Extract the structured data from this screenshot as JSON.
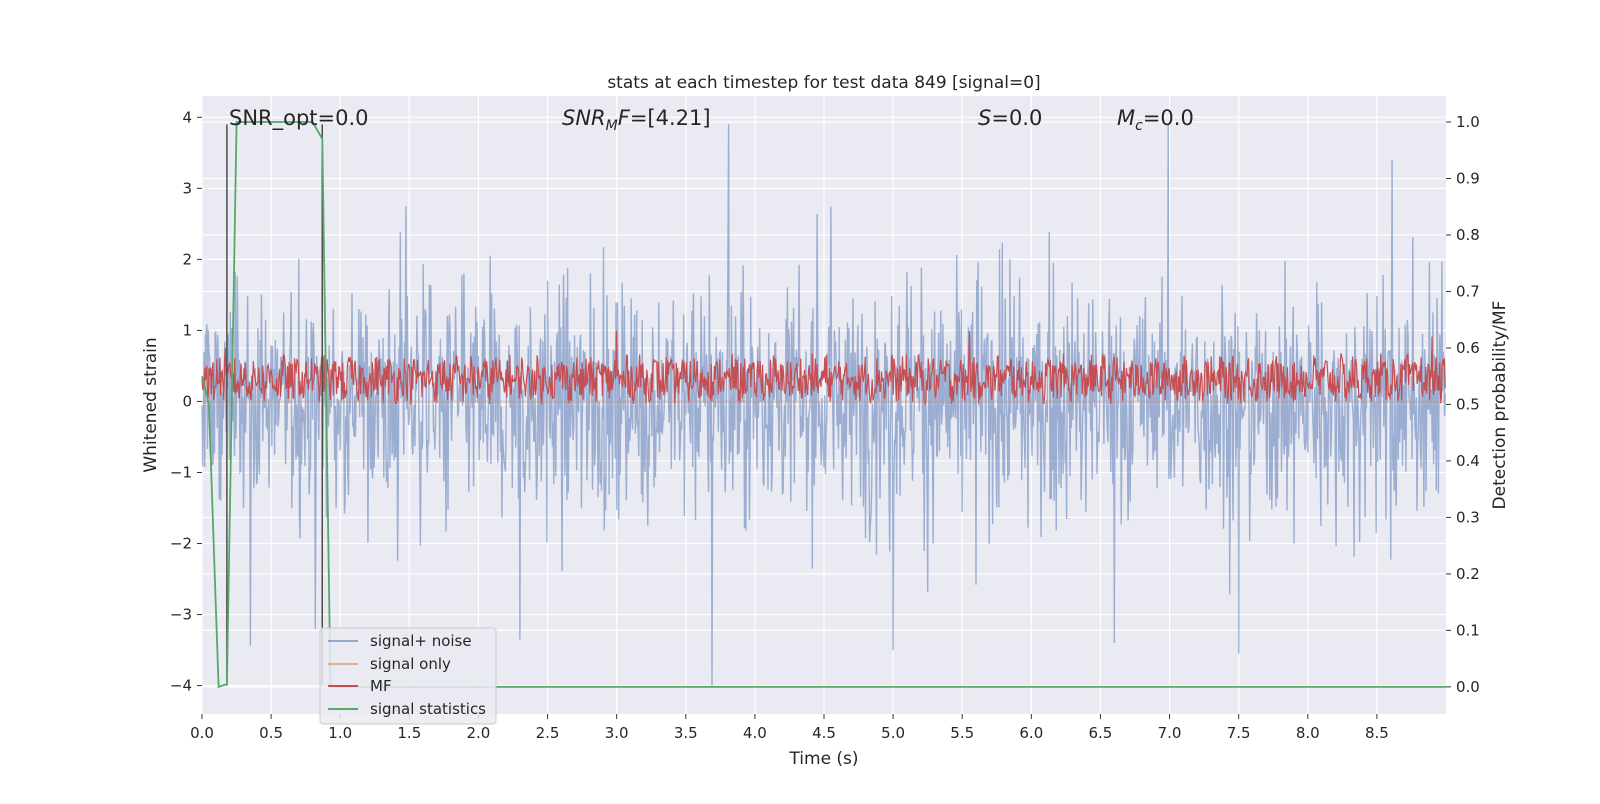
{
  "chart_data": {
    "type": "line",
    "title": "stats at each timestep for test data 849 [signal=0]",
    "xlabel": "Time (s)",
    "ylabel_left": "Whitened strain",
    "ylabel_right": "Detection probability/MF",
    "xlim": [
      0.0,
      9.0
    ],
    "ylim_left": [
      -4.4,
      4.3
    ],
    "ylim_right": [
      -0.048,
      1.046
    ],
    "grid": true,
    "legend_position": "lower-left",
    "x_ticks": [
      "0.0",
      "0.5",
      "1.0",
      "1.5",
      "2.0",
      "2.5",
      "3.0",
      "3.5",
      "4.0",
      "4.5",
      "5.0",
      "5.5",
      "6.0",
      "6.5",
      "7.0",
      "7.5",
      "8.0",
      "8.5"
    ],
    "y_ticks_left": [
      "−4",
      "−3",
      "−2",
      "−1",
      "0",
      "1",
      "2",
      "3",
      "4"
    ],
    "y_ticks_right": [
      "0.0",
      "0.1",
      "0.2",
      "0.3",
      "0.4",
      "0.5",
      "0.6",
      "0.7",
      "0.8",
      "0.9",
      "1.0"
    ],
    "annotations": {
      "snr_opt": "SNR_opt=0.0",
      "snr_mf_label": "SNR",
      "snr_mf_sub": "M",
      "snr_mf_tail": "F",
      "snr_mf_value": "=[4.21]",
      "s_label": "S",
      "s_value": "=0.0",
      "mc_label": "M",
      "mc_sub": "c",
      "mc_value": "=0.0"
    },
    "series": [
      {
        "name": "signal+ noise",
        "axis": "left",
        "color": "#4c72b0",
        "description_of_shape": "dense white-noise strain, typical peaks ±2.5, extremes ~±4",
        "sample_count": 1800,
        "typical_amplitude": 2.6,
        "extreme_peaks": [
          [
            0.82,
            -3.2
          ],
          [
            2.3,
            -3.35
          ],
          [
            3.69,
            -4.0
          ],
          [
            3.81,
            3.9
          ],
          [
            6.99,
            3.9
          ],
          [
            7.5,
            -3.55
          ],
          [
            8.61,
            3.4
          ],
          [
            5.0,
            -3.5
          ],
          [
            6.6,
            -3.4
          ]
        ]
      },
      {
        "name": "signal only",
        "axis": "left",
        "color": "#dd8452",
        "values_constant": 0.0
      },
      {
        "name": "MF",
        "axis": "right",
        "color": "#c44e52",
        "range": [
          0.5,
          0.59
        ],
        "peaks": [
          [
            3.0,
            0.63
          ],
          [
            5.55,
            0.63
          ],
          [
            0.17,
            0.6
          ],
          [
            8.9,
            0.62
          ]
        ]
      },
      {
        "name": "signal statistics",
        "axis": "right",
        "color": "#55a868",
        "x": [
          0.0,
          0.05,
          0.12,
          0.18,
          0.25,
          0.3,
          0.6,
          0.8,
          0.87,
          0.93,
          1.0,
          9.0
        ],
        "y": [
          0.55,
          0.5,
          0.0,
          0.005,
          1.0,
          1.0,
          1.0,
          1.0,
          0.97,
          0.0,
          0.0,
          0.0
        ]
      }
    ],
    "vertical_lines": [
      {
        "x": 0.18,
        "color": "#4d4d4d"
      },
      {
        "x": 0.87,
        "color": "#4d4d4d"
      }
    ]
  },
  "legend": {
    "items": [
      {
        "label": "signal+ noise",
        "color": "#4c72b0"
      },
      {
        "label": "signal only",
        "color": "#dd8452"
      },
      {
        "label": "MF",
        "color": "#c44e52"
      },
      {
        "label": "signal statistics",
        "color": "#55a868"
      }
    ]
  },
  "colors": {
    "plot_background": "#eaeaf2",
    "grid": "#ffffff"
  }
}
